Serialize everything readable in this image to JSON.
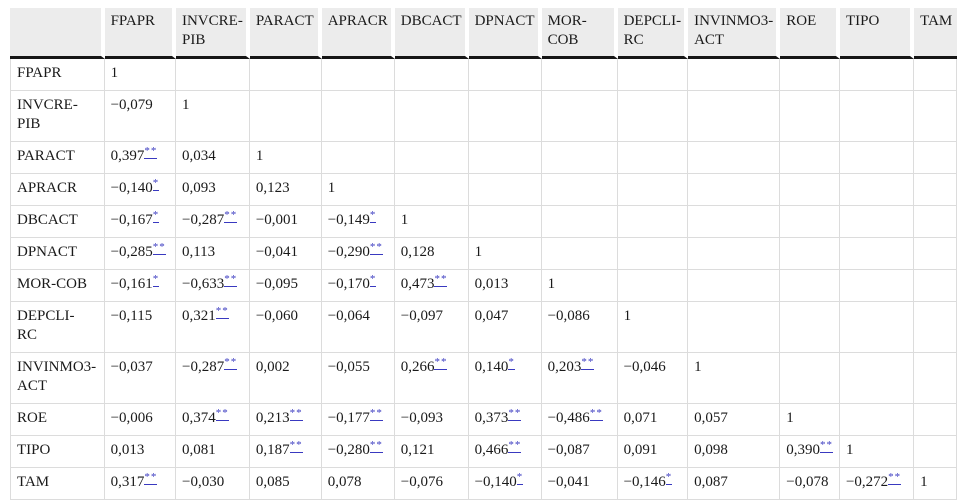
{
  "table": {
    "description": "Correlation matrix table",
    "columns": [
      {
        "id": "fpapr",
        "label": "FPAPR"
      },
      {
        "id": "invcre-pib",
        "label": "INVCRE-\nPIB"
      },
      {
        "id": "paract",
        "label": "PARACT"
      },
      {
        "id": "apracr",
        "label": "APRACR"
      },
      {
        "id": "dbcact",
        "label": "DBCACT"
      },
      {
        "id": "dpnact",
        "label": "DPNACT"
      },
      {
        "id": "mor-cob",
        "label": "MOR-\nCOB"
      },
      {
        "id": "depcli-rc",
        "label": "DEPCLI-\nRC"
      },
      {
        "id": "invinmo3-act",
        "label": "INVINMO3-\nACT"
      },
      {
        "id": "roe",
        "label": "ROE"
      },
      {
        "id": "tipo",
        "label": "TIPO"
      },
      {
        "id": "tam",
        "label": "TAM"
      }
    ],
    "rows": [
      {
        "label": "FPAPR",
        "cells": [
          {
            "v": "1"
          },
          null,
          null,
          null,
          null,
          null,
          null,
          null,
          null,
          null,
          null,
          null
        ]
      },
      {
        "label": "INVCRE-\nPIB",
        "cells": [
          {
            "v": "−0,079"
          },
          {
            "v": "1"
          },
          null,
          null,
          null,
          null,
          null,
          null,
          null,
          null,
          null,
          null
        ]
      },
      {
        "label": "PARACT",
        "cells": [
          {
            "v": "0,397",
            "sig": "**"
          },
          {
            "v": "0,034"
          },
          {
            "v": "1"
          },
          null,
          null,
          null,
          null,
          null,
          null,
          null,
          null,
          null
        ]
      },
      {
        "label": "APRACR",
        "cells": [
          {
            "v": "−0,140",
            "sig": "*"
          },
          {
            "v": "0,093"
          },
          {
            "v": "0,123"
          },
          {
            "v": "1"
          },
          null,
          null,
          null,
          null,
          null,
          null,
          null,
          null
        ]
      },
      {
        "label": "DBCACT",
        "cells": [
          {
            "v": "−0,167",
            "sig": "*"
          },
          {
            "v": "−0,287",
            "sig": "**"
          },
          {
            "v": "−0,001"
          },
          {
            "v": "−0,149",
            "sig": "*"
          },
          {
            "v": "1"
          },
          null,
          null,
          null,
          null,
          null,
          null,
          null
        ]
      },
      {
        "label": "DPNACT",
        "cells": [
          {
            "v": "−0,285",
            "sig": "**"
          },
          {
            "v": "0,113"
          },
          {
            "v": "−0,041"
          },
          {
            "v": "−0,290",
            "sig": "**"
          },
          {
            "v": "0,128"
          },
          {
            "v": "1"
          },
          null,
          null,
          null,
          null,
          null,
          null
        ]
      },
      {
        "label": "MOR-COB",
        "cells": [
          {
            "v": "−0,161",
            "sig": "*"
          },
          {
            "v": "−0,633",
            "sig": "**"
          },
          {
            "v": "−0,095"
          },
          {
            "v": "−0,170",
            "sig": "*"
          },
          {
            "v": "0,473",
            "sig": "**"
          },
          {
            "v": "0,013"
          },
          {
            "v": "1"
          },
          null,
          null,
          null,
          null,
          null
        ]
      },
      {
        "label": "DEPCLI-\nRC",
        "cells": [
          {
            "v": "−0,115"
          },
          {
            "v": "0,321",
            "sig": "**"
          },
          {
            "v": "−0,060"
          },
          {
            "v": "−0,064"
          },
          {
            "v": "−0,097"
          },
          {
            "v": "0,047"
          },
          {
            "v": "−0,086"
          },
          {
            "v": "1"
          },
          null,
          null,
          null,
          null
        ]
      },
      {
        "label": "INVINMO3-\nACT",
        "cells": [
          {
            "v": "−0,037"
          },
          {
            "v": "−0,287",
            "sig": "**"
          },
          {
            "v": "0,002"
          },
          {
            "v": "−0,055"
          },
          {
            "v": "0,266",
            "sig": "**"
          },
          {
            "v": "0,140",
            "sig": "*"
          },
          {
            "v": "0,203",
            "sig": "**"
          },
          {
            "v": "−0,046"
          },
          {
            "v": "1"
          },
          null,
          null,
          null
        ]
      },
      {
        "label": "ROE",
        "cells": [
          {
            "v": "−0,006"
          },
          {
            "v": "0,374",
            "sig": "**"
          },
          {
            "v": "0,213",
            "sig": "**"
          },
          {
            "v": "−0,177",
            "sig": "**"
          },
          {
            "v": "−0,093"
          },
          {
            "v": "0,373",
            "sig": "**"
          },
          {
            "v": "−0,486",
            "sig": "**"
          },
          {
            "v": "0,071"
          },
          {
            "v": "0,057"
          },
          {
            "v": "1"
          },
          null,
          null
        ]
      },
      {
        "label": "TIPO",
        "cells": [
          {
            "v": "0,013"
          },
          {
            "v": "0,081"
          },
          {
            "v": "0,187",
            "sig": "**"
          },
          {
            "v": "−0,280",
            "sig": "**"
          },
          {
            "v": "0,121"
          },
          {
            "v": "0,466",
            "sig": "**"
          },
          {
            "v": "−0,087"
          },
          {
            "v": "0,091"
          },
          {
            "v": "0,098"
          },
          {
            "v": "0,390",
            "sig": "**"
          },
          {
            "v": "1"
          },
          null
        ]
      },
      {
        "label": "TAM",
        "cells": [
          {
            "v": "0,317",
            "sig": "**"
          },
          {
            "v": "−0,030"
          },
          {
            "v": "0,085"
          },
          {
            "v": "0,078"
          },
          {
            "v": "−0,076"
          },
          {
            "v": "−0,140",
            "sig": "*"
          },
          {
            "v": "−0,041"
          },
          {
            "v": "−0,146",
            "sig": "*"
          },
          {
            "v": "0,087"
          },
          {
            "v": "−0,078"
          },
          {
            "v": "−0,272",
            "sig": "**"
          },
          {
            "v": "1"
          }
        ]
      }
    ]
  },
  "colors": {
    "header_background": "#ececec",
    "grid_line": "#dcdcdc",
    "header_rule": "#161616",
    "significance_link": "#3939c0",
    "text": "#1a1a1a"
  }
}
